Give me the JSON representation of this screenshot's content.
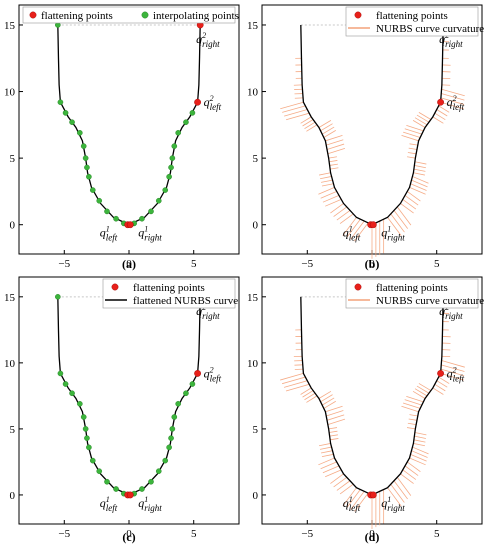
{
  "figure": {
    "panels": [
      {
        "label": "(a)",
        "legend": [
          {
            "text": "flattening points",
            "marker": "red-dot"
          },
          {
            "text": "interpolating points",
            "marker": "green-dot"
          }
        ],
        "legend_layout": "horizontal",
        "show_green_points": true,
        "show_curvature": false
      },
      {
        "label": "(b)",
        "legend": [
          {
            "text": "flattening points",
            "marker": "red-dot"
          },
          {
            "text": "NURBS curve curvature",
            "marker": "orange-line"
          }
        ],
        "legend_layout": "vertical",
        "show_green_points": false,
        "show_curvature": true
      },
      {
        "label": "(c)",
        "legend": [
          {
            "text": "flattening points",
            "marker": "red-dot"
          },
          {
            "text": "flattened NURBS curve",
            "marker": "black-line"
          }
        ],
        "legend_layout": "vertical",
        "show_green_points": true,
        "show_curvature": false
      },
      {
        "label": "(d)",
        "legend": [
          {
            "text": "flattening points",
            "marker": "red-dot"
          },
          {
            "text": "NURBS curve curvature",
            "marker": "orange-line"
          }
        ],
        "legend_layout": "vertical",
        "show_green_points": false,
        "show_curvature": true
      }
    ]
  },
  "chart_data": {
    "type": "line",
    "xlim": [
      -8.5,
      8.5
    ],
    "ylim": [
      -2.2,
      16.5
    ],
    "xticks": [
      -5,
      0,
      5
    ],
    "yticks": [
      0,
      5,
      10,
      15
    ],
    "grid": false,
    "legend_position": "top",
    "colors": {
      "curve": "#000000",
      "flattening_point": "#e8201a",
      "interpolating_point": "#3cb43c",
      "curvature": "#f4a27a",
      "dashed_line": "#c8c8c8"
    },
    "series": [
      {
        "name": "flattened NURBS curve",
        "points": [
          [
            -5.5,
            15.0
          ],
          [
            -5.45,
            12.5
          ],
          [
            -5.4,
            10.5
          ],
          [
            -5.3,
            9.2
          ],
          [
            -4.7,
            8.1
          ],
          [
            -4.1,
            7.3
          ],
          [
            -3.6,
            6.3
          ],
          [
            -3.35,
            5.0
          ],
          [
            -3.2,
            3.9
          ],
          [
            -2.9,
            2.8
          ],
          [
            -2.2,
            1.6
          ],
          [
            -1.2,
            0.55
          ],
          [
            0.0,
            0.0
          ],
          [
            1.2,
            0.55
          ],
          [
            2.2,
            1.6
          ],
          [
            2.9,
            2.8
          ],
          [
            3.2,
            3.9
          ],
          [
            3.35,
            5.0
          ],
          [
            3.6,
            6.3
          ],
          [
            4.1,
            7.3
          ],
          [
            4.7,
            8.1
          ],
          [
            5.3,
            9.2
          ],
          [
            5.4,
            10.5
          ],
          [
            5.45,
            12.5
          ],
          [
            5.5,
            15.0
          ]
        ]
      },
      {
        "name": "flattening points",
        "points": [
          [
            5.5,
            15.0
          ],
          [
            5.3,
            9.2
          ],
          [
            -0.1,
            0.0
          ],
          [
            0.1,
            0.0
          ]
        ]
      },
      {
        "name": "interpolating points",
        "points": [
          [
            -5.5,
            15.0
          ],
          [
            -5.3,
            9.2
          ],
          [
            -4.9,
            8.4
          ],
          [
            -4.4,
            7.7
          ],
          [
            -3.8,
            6.9
          ],
          [
            -3.5,
            5.9
          ],
          [
            -3.35,
            5.0
          ],
          [
            -3.25,
            4.3
          ],
          [
            -3.1,
            3.6
          ],
          [
            -2.8,
            2.6
          ],
          [
            -2.3,
            1.8
          ],
          [
            -1.7,
            1.0
          ],
          [
            -1.0,
            0.45
          ],
          [
            -0.4,
            0.1
          ],
          [
            0.4,
            0.1
          ],
          [
            1.0,
            0.45
          ],
          [
            1.7,
            1.0
          ],
          [
            2.3,
            1.8
          ],
          [
            2.8,
            2.6
          ],
          [
            3.1,
            3.6
          ],
          [
            3.25,
            4.3
          ],
          [
            3.35,
            5.0
          ],
          [
            3.5,
            5.9
          ],
          [
            3.8,
            6.9
          ],
          [
            4.4,
            7.7
          ],
          [
            4.9,
            8.4
          ],
          [
            5.3,
            9.2
          ]
        ]
      }
    ],
    "annotations": [
      {
        "base": "q",
        "sub": "right",
        "sup": "2",
        "at": [
          5.5,
          15.0
        ]
      },
      {
        "base": "q",
        "sub": "left",
        "sup": "2",
        "at": [
          5.3,
          9.2
        ]
      },
      {
        "base": "q",
        "sub": "left",
        "sup": "1",
        "at": [
          -0.1,
          0.0
        ]
      },
      {
        "base": "q",
        "sub": "right",
        "sup": "1",
        "at": [
          0.1,
          0.0
        ]
      }
    ]
  }
}
